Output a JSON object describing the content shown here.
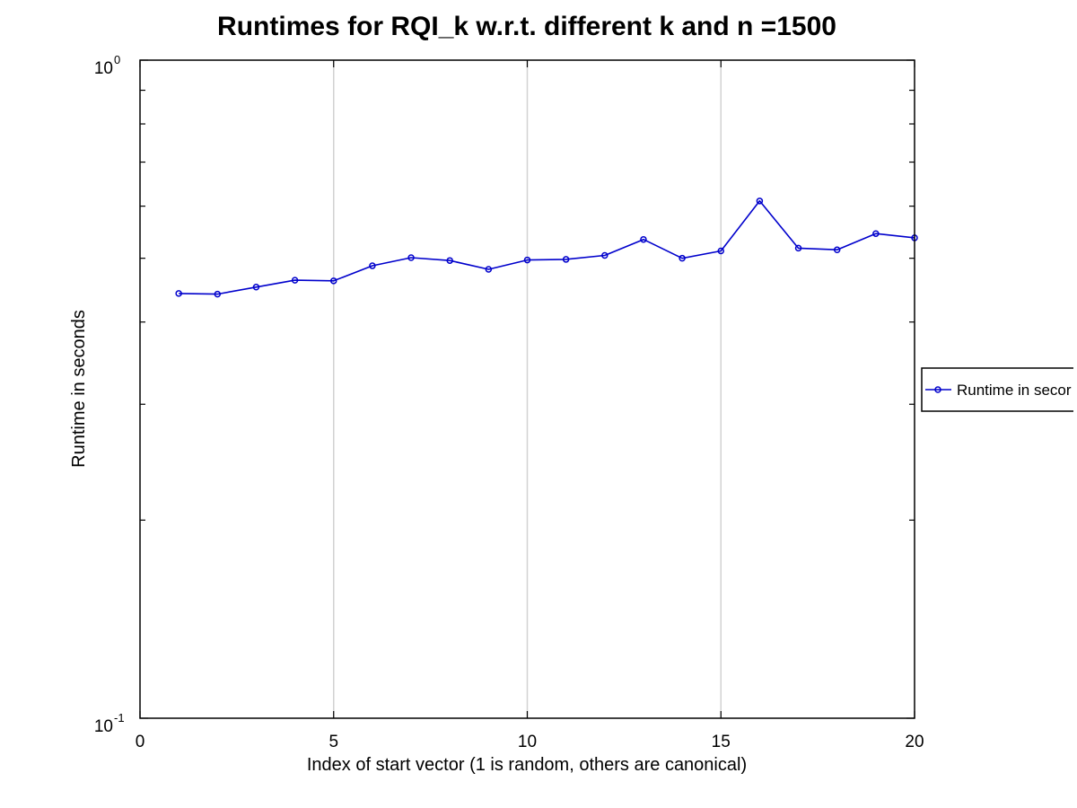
{
  "chart_data": {
    "type": "line",
    "title": "Runtimes for RQI_k w.r.t. different k and n =1500",
    "xlabel": "Index of start vector (1 is random, others are canonical)",
    "ylabel": "Runtime in seconds",
    "xlim": [
      0,
      20
    ],
    "ylim": [
      0.1,
      1
    ],
    "yscale": "log",
    "x_ticks": [
      0,
      5,
      10,
      15,
      20
    ],
    "y_ticks": [
      {
        "base": "10",
        "exp": "-1"
      },
      {
        "base": "10",
        "exp": "0"
      }
    ],
    "grid": "vertical major lines",
    "legend_position": "outside-right",
    "series": [
      {
        "name": "Runtime in seconds",
        "legend_text_visible": "Runtime in secor",
        "color": "#0000cc",
        "marker": "circle",
        "x": [
          1,
          2,
          3,
          4,
          5,
          6,
          7,
          8,
          9,
          10,
          11,
          12,
          13,
          14,
          15,
          16,
          17,
          18,
          19,
          20
        ],
        "y": [
          0.442,
          0.441,
          0.452,
          0.463,
          0.462,
          0.487,
          0.501,
          0.496,
          0.481,
          0.497,
          0.498,
          0.505,
          0.534,
          0.5,
          0.513,
          0.611,
          0.518,
          0.515,
          0.545,
          0.537
        ]
      }
    ]
  }
}
